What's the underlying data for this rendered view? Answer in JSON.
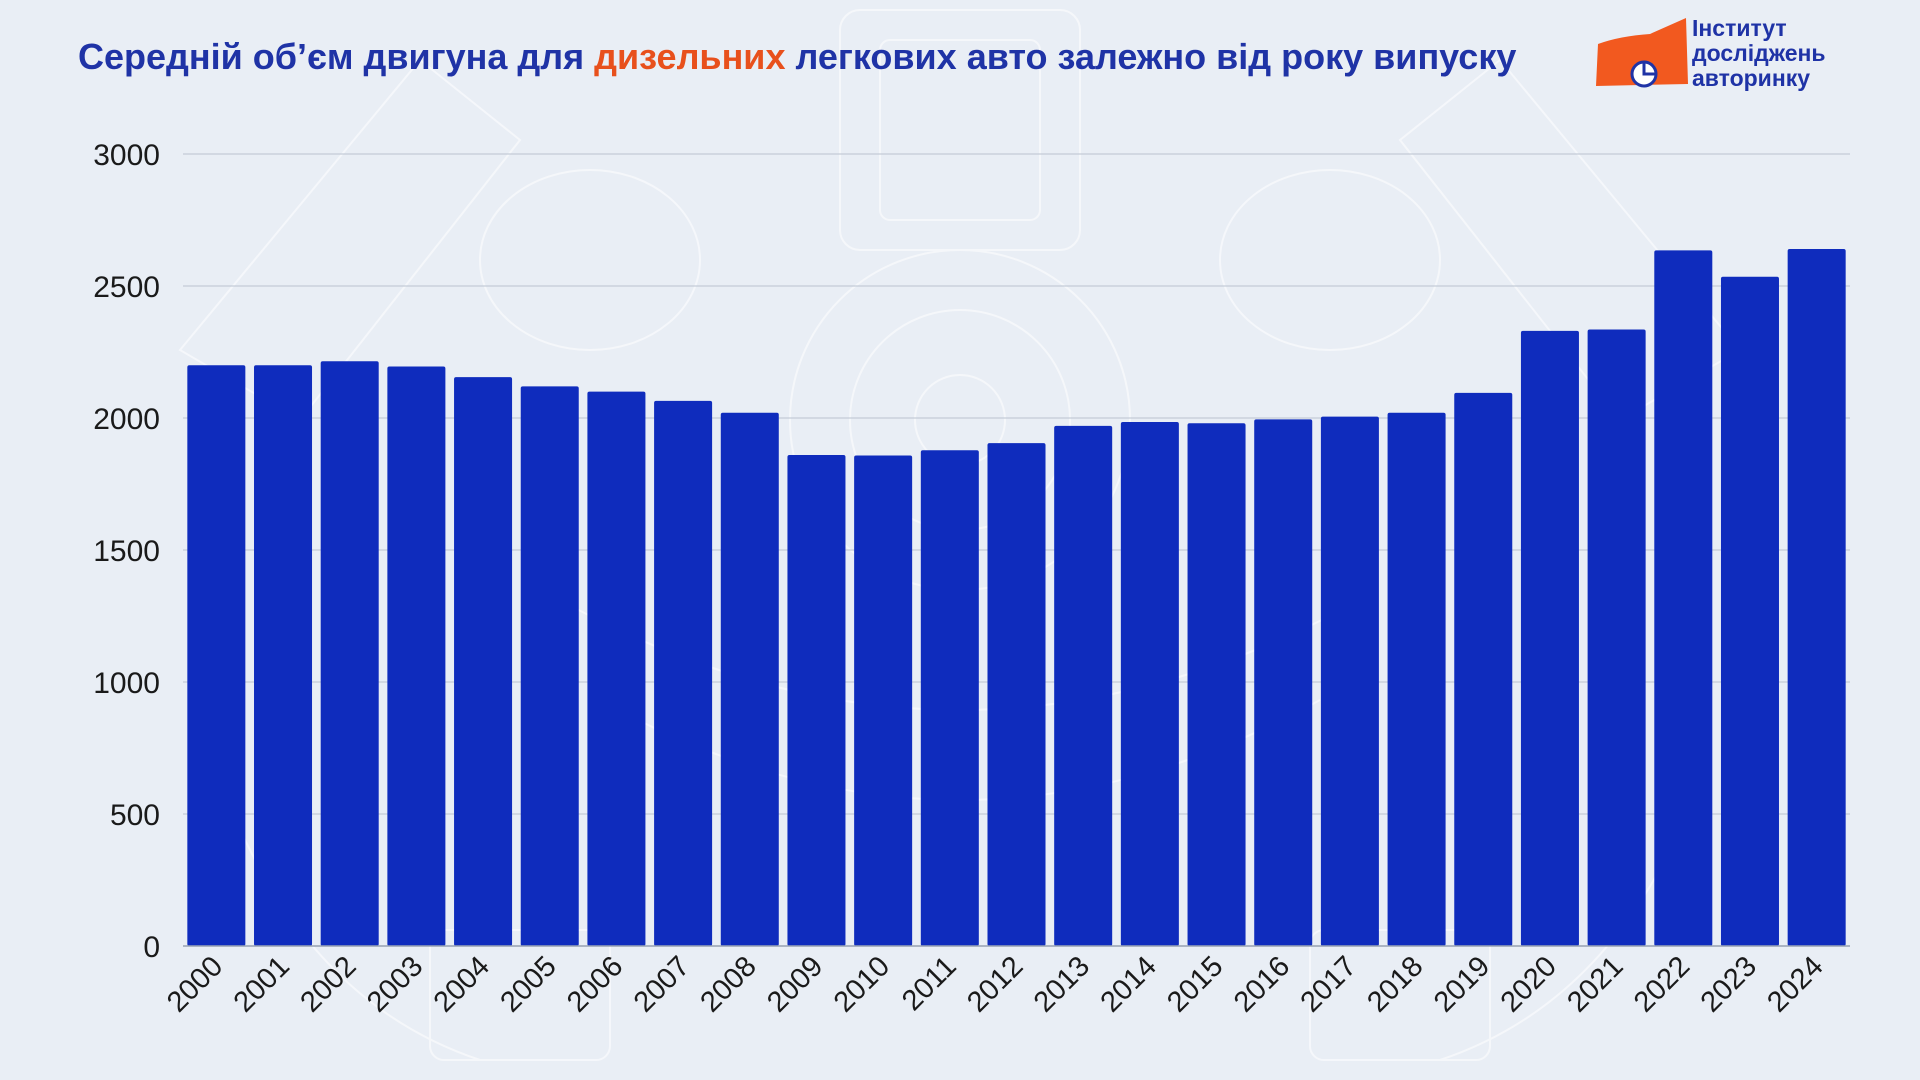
{
  "title": {
    "before": "Середній об’єм двигуна для ",
    "highlight": "дизельних",
    "after": " легкових авто залежно від року випуску"
  },
  "logo": {
    "line1": "Інститут",
    "line2": "досліджень",
    "line3": "авторинку",
    "icon": "institute-logo-icon"
  },
  "colors": {
    "bar": "#0f2cbd",
    "title": "#1f33a6",
    "highlight": "#e8501c",
    "background": "#e9eef5",
    "logo_orange": "#f2591f"
  },
  "chart_data": {
    "type": "bar",
    "title": "Середній об’єм двигуна для дизельних легкових авто залежно від року випуску",
    "xlabel": "",
    "ylabel": "",
    "categories": [
      "2000",
      "2001",
      "2002",
      "2003",
      "2004",
      "2005",
      "2006",
      "2007",
      "2008",
      "2009",
      "2010",
      "2011",
      "2012",
      "2013",
      "2014",
      "2015",
      "2016",
      "2017",
      "2018",
      "2019",
      "2020",
      "2021",
      "2022",
      "2023",
      "2024"
    ],
    "values": [
      2200,
      2200,
      2215,
      2195,
      2155,
      2120,
      2100,
      2065,
      2020,
      1860,
      1858,
      1878,
      1905,
      1970,
      1985,
      1980,
      1995,
      2005,
      2020,
      2095,
      2330,
      2335,
      2635,
      2535,
      2640
    ],
    "ylim": [
      0,
      3000
    ],
    "yticks": [
      0,
      500,
      1000,
      1500,
      2000,
      2500,
      3000
    ],
    "grid": true,
    "legend": "none"
  }
}
